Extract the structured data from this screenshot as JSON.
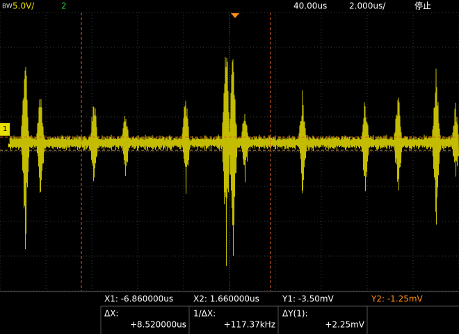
{
  "header": {
    "bandwidth": "BW",
    "scale": "5.0V/",
    "channel": "2",
    "delay": "40.00us",
    "timebase": "2.000us/",
    "status": "停止"
  },
  "channel_marker": "1",
  "measurements": {
    "x1": "X1: -6.860000us",
    "x2": "X2: 1.660000us",
    "y1": "Y1: -3.50mV",
    "y2": "Y2: -1.25mV",
    "dx_label": "ΔX:",
    "dx_value": "+8.520000us",
    "inv_dx_label": "1/ΔX:",
    "inv_dx_value": "+117.37kHz",
    "dy_label": "ΔY(1):",
    "dy_value": "+2.25mV"
  }
}
